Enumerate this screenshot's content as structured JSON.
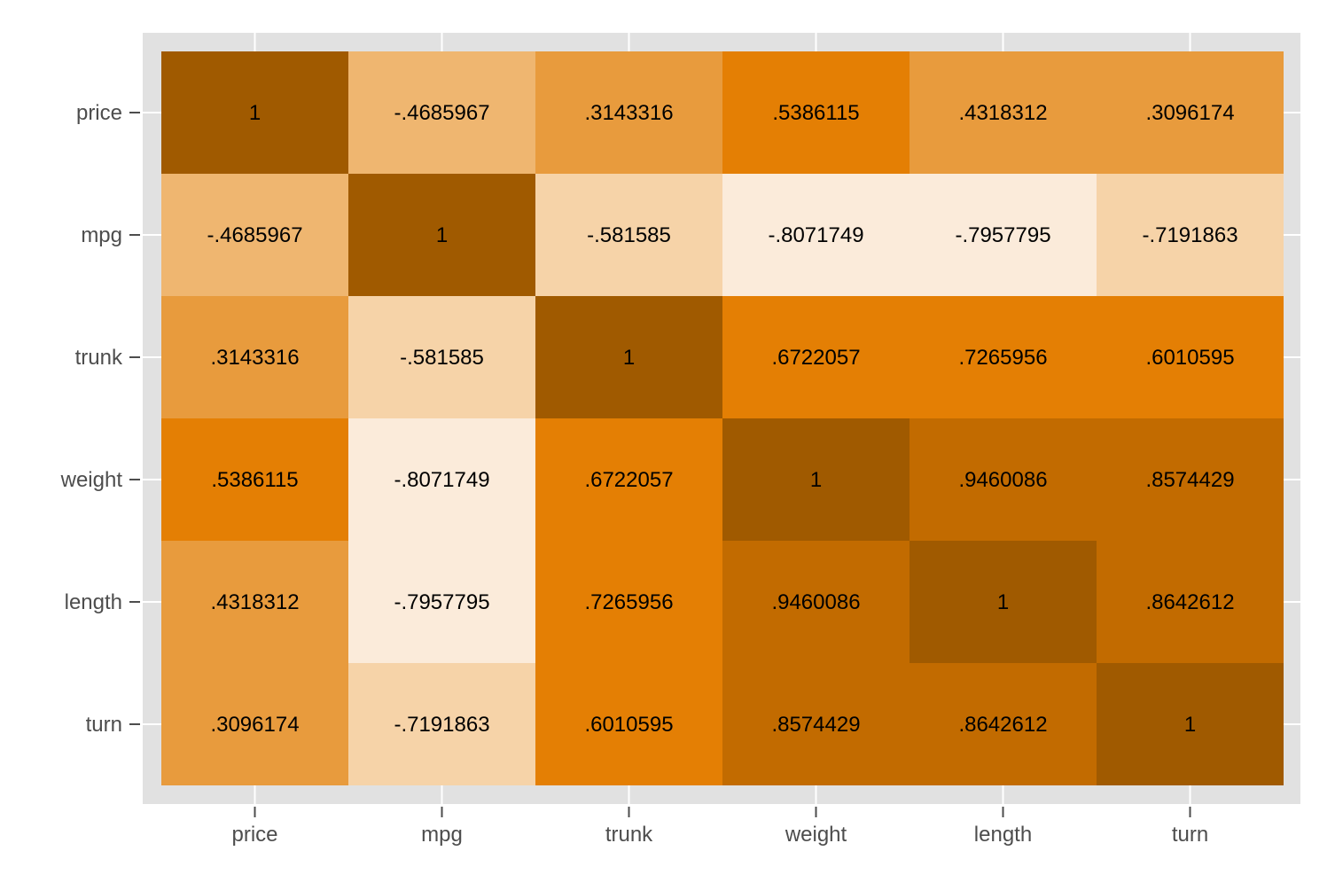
{
  "chart_data": {
    "type": "heatmap",
    "title": "",
    "xlabel": "",
    "ylabel": "",
    "categories_x": [
      "price",
      "mpg",
      "trunk",
      "weight",
      "length",
      "turn"
    ],
    "categories_y": [
      "price",
      "mpg",
      "trunk",
      "weight",
      "length",
      "turn"
    ],
    "values": [
      [
        1,
        -0.4685967,
        0.3143316,
        0.5386115,
        0.4318312,
        0.3096174
      ],
      [
        -0.4685967,
        1,
        -0.581585,
        -0.8071749,
        -0.7957795,
        -0.7191863
      ],
      [
        0.3143316,
        -0.581585,
        1,
        0.6722057,
        0.7265956,
        0.6010595
      ],
      [
        0.5386115,
        -0.8071749,
        0.6722057,
        1,
        0.9460086,
        0.8574429
      ],
      [
        0.4318312,
        -0.7957795,
        0.7265956,
        0.9460086,
        1,
        0.8642612
      ],
      [
        0.3096174,
        -0.7191863,
        0.6010595,
        0.8574429,
        0.8642612,
        1
      ]
    ],
    "cell_labels": [
      [
        "1",
        "-.4685967",
        ".3143316",
        ".5386115",
        ".4318312",
        ".3096174"
      ],
      [
        "-.4685967",
        "1",
        "-.581585",
        "-.8071749",
        "-.7957795",
        "-.7191863"
      ],
      [
        ".3143316",
        "-.581585",
        "1",
        ".6722057",
        ".7265956",
        ".6010595"
      ],
      [
        ".5386115",
        "-.8071749",
        ".6722057",
        "1",
        ".9460086",
        ".8574429"
      ],
      [
        ".4318312",
        "-.7957795",
        ".7265956",
        ".9460086",
        "1",
        ".8642612"
      ],
      [
        ".3096174",
        "-.7191863",
        ".6010595",
        ".8574429",
        ".8642612",
        "1"
      ]
    ],
    "color_scale": [
      {
        "max": -0.75,
        "color": "#fbebda"
      },
      {
        "max": -0.5,
        "color": "#f6d3a8"
      },
      {
        "max": 0,
        "color": "#efb670"
      },
      {
        "max": 0.5,
        "color": "#e89b3d"
      },
      {
        "max": 0.75,
        "color": "#e47f04"
      },
      {
        "max": 0.99,
        "color": "#c26b00"
      },
      {
        "max": 1,
        "color": "#a05a00"
      }
    ],
    "panel_background": "#e1e1e1",
    "grid": true,
    "legend": "none"
  }
}
